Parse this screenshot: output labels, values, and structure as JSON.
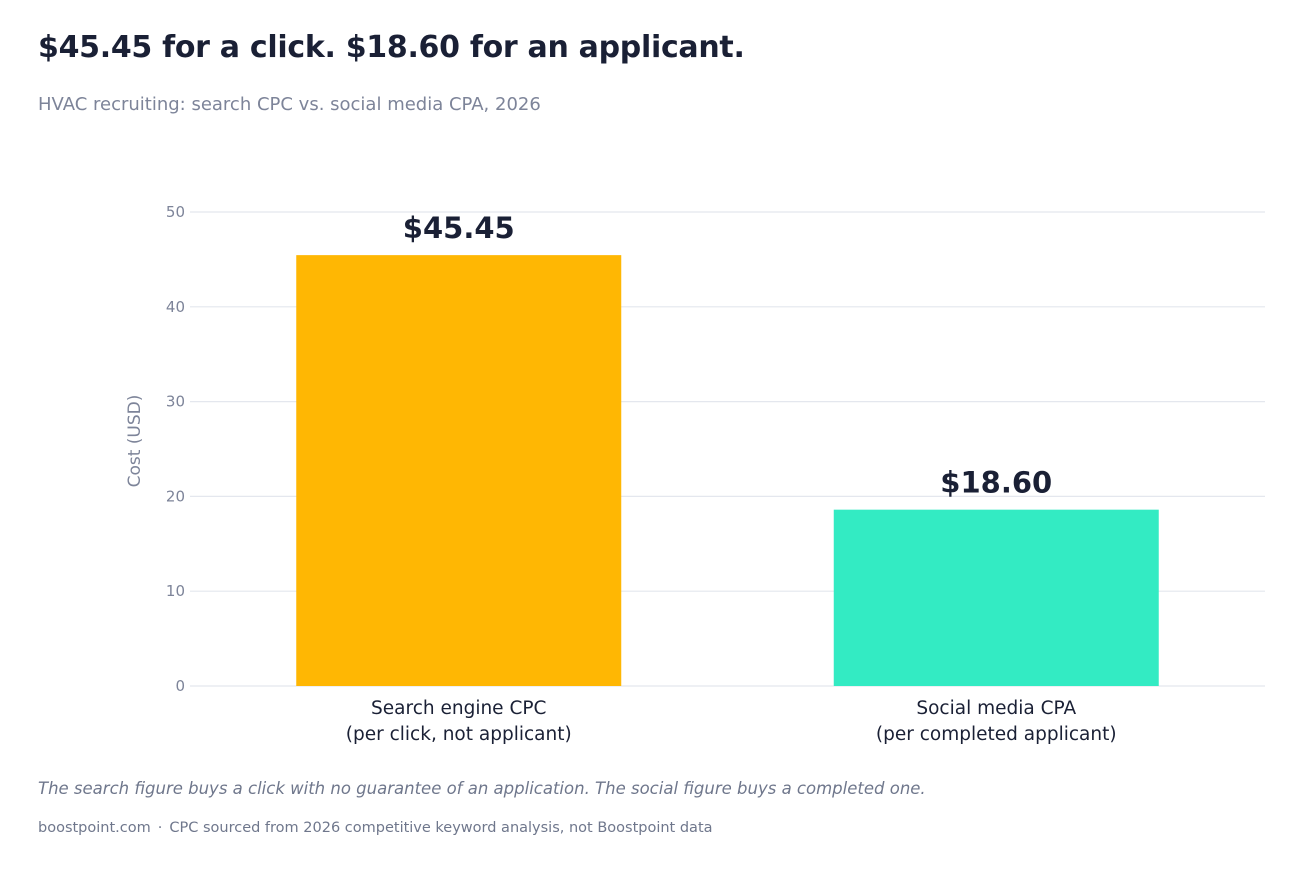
{
  "title": "$45.45 for a click. $18.60 for an applicant.",
  "subtitle": "HVAC recruiting: search CPC vs. social media CPA, 2026",
  "caption": "The search figure buys a click with no guarantee of an application. The social figure buys a completed one.",
  "footer": {
    "site": "boostpoint.com",
    "separator": "·",
    "note": "CPC sourced from 2026 competitive keyword analysis, not Boostpoint data"
  },
  "chart_data": {
    "type": "bar",
    "categories": [
      [
        "Search engine CPC",
        "(per click, not applicant)"
      ],
      [
        "Social media CPA",
        "(per completed applicant)"
      ]
    ],
    "values": [
      45.45,
      18.6
    ],
    "value_labels": [
      "$45.45",
      "$18.60"
    ],
    "colors": [
      "#FFB703",
      "#33EBC3"
    ],
    "ylabel": "Cost (USD)",
    "xlabel": "",
    "ylim": [
      0,
      50
    ],
    "yticks": [
      0,
      10,
      20,
      30,
      40,
      50
    ],
    "grid": true,
    "legend": "none"
  }
}
